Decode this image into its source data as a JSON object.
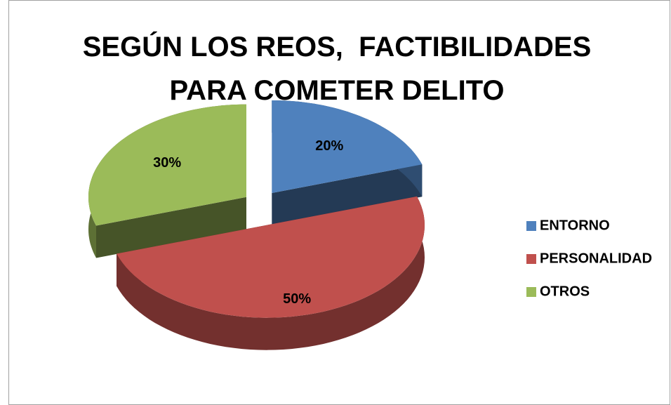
{
  "chart_data": {
    "type": "pie",
    "title": "SEGÚN LOS REOS,  FACTIBILIDADES PARA COMETER DELITO",
    "categories": [
      "ENTORNO",
      "PERSONALIDAD",
      "OTROS"
    ],
    "values": [
      20,
      50,
      30
    ],
    "value_labels": [
      "20%",
      "50%",
      "30%"
    ],
    "colors": [
      "#4f81bd",
      "#c0504d",
      "#9bbb59"
    ],
    "legend": "right"
  }
}
